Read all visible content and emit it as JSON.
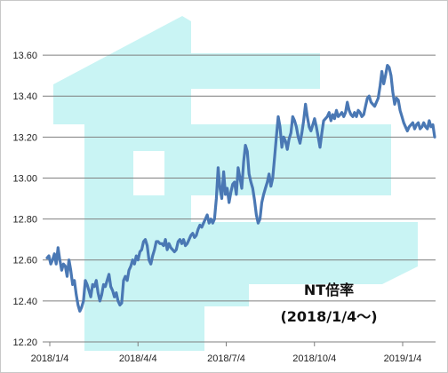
{
  "chart_data": {
    "type": "line",
    "title": "",
    "xlabel": "",
    "ylabel": "",
    "ylim": [
      12.2,
      13.7
    ],
    "yticks": [
      "12.20",
      "12.40",
      "12.60",
      "12.80",
      "13.00",
      "13.20",
      "13.40",
      "13.60"
    ],
    "xticks": [
      "2018/1/4",
      "2018/4/4",
      "2018/7/4",
      "2018/10/4",
      "2019/1/4"
    ],
    "grid": true,
    "line_color": "#4a78b4",
    "watermark_color": "#c9f4f4",
    "annotation": [
      "NT倍率",
      "(2018/1/4〜)"
    ],
    "series": [
      {
        "values": [
          12.61,
          12.62,
          12.58,
          12.6,
          12.63,
          12.58,
          12.66,
          12.6,
          12.55,
          12.58,
          12.57,
          12.52,
          12.6,
          12.55,
          12.48,
          12.5,
          12.43,
          12.38,
          12.35,
          12.37,
          12.4,
          12.5,
          12.48,
          12.45,
          12.42,
          12.48,
          12.47,
          12.5,
          12.44,
          12.4,
          12.43,
          12.48,
          12.47,
          12.5,
          12.53,
          12.47,
          12.45,
          12.42,
          12.44,
          12.4,
          12.38,
          12.39,
          12.5,
          12.52,
          12.5,
          12.55,
          12.57,
          12.6,
          12.58,
          12.62,
          12.6,
          12.64,
          12.65,
          12.69,
          12.7,
          12.67,
          12.6,
          12.58,
          12.62,
          12.65,
          12.69,
          12.69,
          12.68,
          12.68,
          12.67,
          12.7,
          12.65,
          12.68,
          12.66,
          12.65,
          12.64,
          12.65,
          12.69,
          12.7,
          12.68,
          12.7,
          12.67,
          12.68,
          12.7,
          12.72,
          12.73,
          12.71,
          12.72,
          12.75,
          12.77,
          12.76,
          12.78,
          12.8,
          12.82,
          12.78,
          12.8,
          12.78,
          12.8,
          12.9,
          13.05,
          12.95,
          12.9,
          13.03,
          12.92,
          12.95,
          12.88,
          12.93,
          12.97,
          12.98,
          12.92,
          13.05,
          13.0,
          12.95,
          13.08,
          13.16,
          13.13,
          13.02,
          12.98,
          12.95,
          12.89,
          12.82,
          12.78,
          12.8,
          12.88,
          12.92,
          12.95,
          12.98,
          13.02,
          12.96,
          13.0,
          13.1,
          13.2,
          13.3,
          13.25,
          13.15,
          13.2,
          13.18,
          13.14,
          13.19,
          13.22,
          13.3,
          13.28,
          13.25,
          13.2,
          13.17,
          13.22,
          13.28,
          13.36,
          13.3,
          13.25,
          13.23,
          13.26,
          13.29,
          13.25,
          13.2,
          13.15,
          13.22,
          13.28,
          13.29,
          13.3,
          13.32,
          13.28,
          13.31,
          13.29,
          13.33,
          13.3,
          13.31,
          13.32,
          13.3,
          13.32,
          13.37,
          13.33,
          13.31,
          13.3,
          13.32,
          13.3,
          13.33,
          13.32,
          13.3,
          13.31,
          13.35,
          13.39,
          13.4,
          13.37,
          13.36,
          13.35,
          13.37,
          13.39,
          13.45,
          13.52,
          13.46,
          13.5,
          13.55,
          13.54,
          13.5,
          13.42,
          13.36,
          13.39,
          13.38,
          13.33,
          13.3,
          13.27,
          13.25,
          13.23,
          13.25,
          13.26,
          13.27,
          13.24,
          13.26,
          13.27,
          13.24,
          13.25,
          13.27,
          13.25,
          13.24,
          13.28,
          13.25,
          13.26,
          13.2
        ]
      }
    ]
  }
}
